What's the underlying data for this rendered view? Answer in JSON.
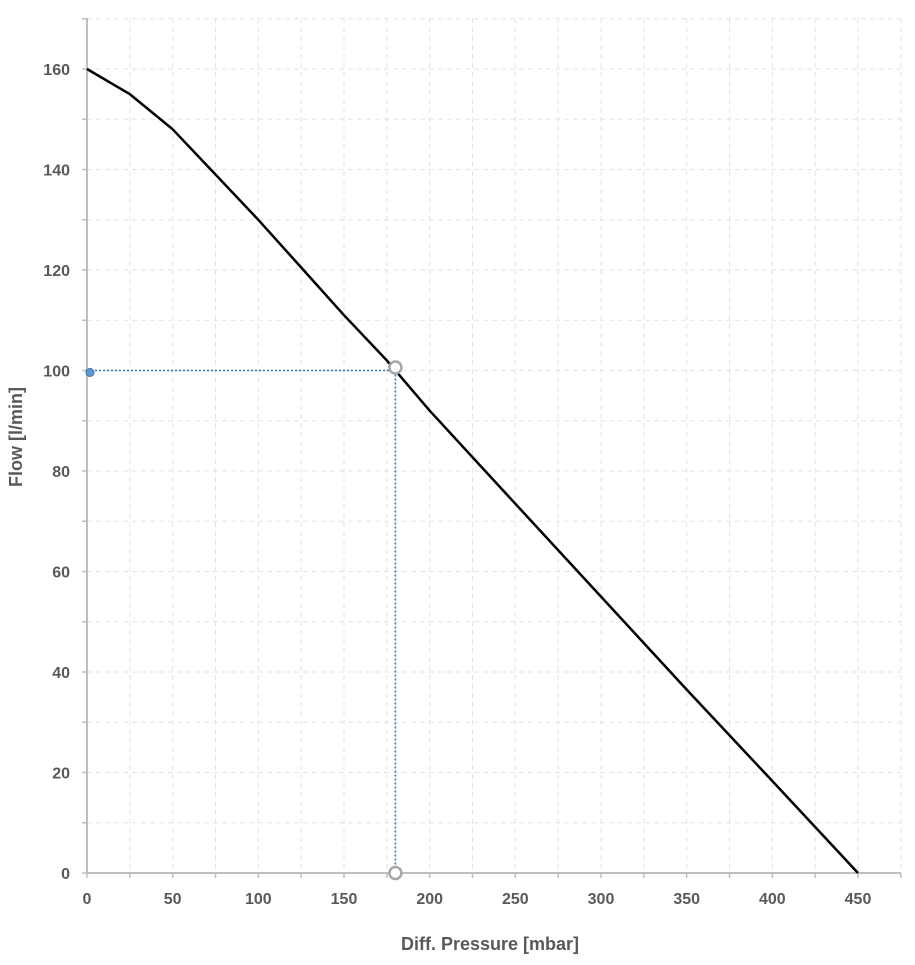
{
  "chart_data": {
    "type": "line",
    "title": "",
    "xlabel": "Diff. Pressure [mbar]",
    "ylabel": "Flow [l/min]",
    "xlim": [
      0,
      450
    ],
    "ylim": [
      0,
      170
    ],
    "x_ticks": [
      0,
      50,
      100,
      150,
      200,
      250,
      300,
      350,
      400,
      450
    ],
    "y_ticks": [
      0,
      20,
      40,
      60,
      80,
      100,
      120,
      140,
      160
    ],
    "x_tick_labels": [
      "0",
      "50",
      "100",
      "150",
      "200",
      "250",
      "300",
      "350",
      "400",
      "450"
    ],
    "y_tick_labels": [
      "0",
      "20",
      "40",
      "60",
      "80",
      "100",
      "120",
      "140",
      "160"
    ],
    "grid": true,
    "series": [
      {
        "x": [
          0,
          25,
          50,
          75,
          100,
          125,
          150,
          175,
          200,
          250,
          300,
          350,
          400,
          450
        ],
        "y": [
          160,
          155,
          148,
          139,
          130,
          120.5,
          111,
          102,
          92,
          73.5,
          55,
          36.5,
          18.3,
          0
        ],
        "color": "#000000"
      }
    ],
    "operating_point": {
      "x": 180,
      "y": 100
    },
    "guide_color": "#2E75B6",
    "marker_color": "#A6A6A6",
    "axis_color": "#BFBFBF"
  }
}
